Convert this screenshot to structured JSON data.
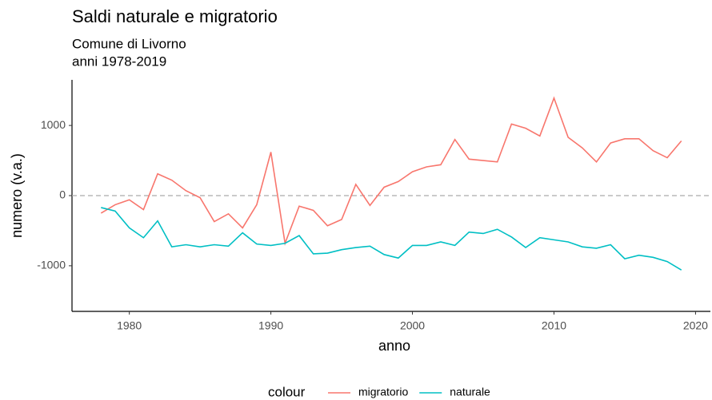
{
  "chart_data": {
    "type": "line",
    "title": "Saldi naturale e migratorio",
    "subtitle": [
      "Comune di Livorno",
      "anni 1978-2019"
    ],
    "x_label": "anno",
    "y_label": "numero (v.a.)",
    "legend_title": "colour",
    "legend_position": "bottom",
    "x": [
      1978,
      1979,
      1980,
      1981,
      1982,
      1983,
      1984,
      1985,
      1986,
      1987,
      1988,
      1989,
      1990,
      1991,
      1992,
      1993,
      1994,
      1995,
      1996,
      1997,
      1998,
      1999,
      2000,
      2001,
      2002,
      2003,
      2004,
      2005,
      2006,
      2007,
      2008,
      2009,
      2010,
      2011,
      2012,
      2013,
      2014,
      2015,
      2016,
      2017,
      2018,
      2019
    ],
    "series": [
      {
        "name": "migratorio",
        "color": "#F8766D",
        "values": [
          -250,
          -130,
          -60,
          -200,
          310,
          220,
          70,
          -30,
          -370,
          -260,
          -460,
          -130,
          620,
          -680,
          -150,
          -210,
          -430,
          -340,
          160,
          -140,
          120,
          200,
          340,
          410,
          440,
          800,
          520,
          500,
          480,
          1020,
          960,
          850,
          1390,
          830,
          680,
          480,
          750,
          810,
          810,
          640,
          540,
          780
        ]
      },
      {
        "name": "naturale",
        "color": "#00BFC4",
        "values": [
          -170,
          -220,
          -460,
          -600,
          -360,
          -730,
          -700,
          -730,
          -700,
          -720,
          -530,
          -690,
          -710,
          -680,
          -570,
          -830,
          -820,
          -770,
          -740,
          -720,
          -840,
          -890,
          -710,
          -710,
          -660,
          -710,
          -520,
          -540,
          -480,
          -590,
          -740,
          -600,
          -630,
          -660,
          -730,
          -750,
          -700,
          -900,
          -850,
          -880,
          -940,
          -1060
        ]
      }
    ],
    "reference_line": 0,
    "xlim": [
      1975.95,
      2021.05
    ],
    "xticks": [
      1980,
      1990,
      2000,
      2010,
      2020
    ],
    "ylim": [
      -1650,
      1650
    ],
    "yticks": [
      -1000,
      0,
      1000
    ]
  }
}
